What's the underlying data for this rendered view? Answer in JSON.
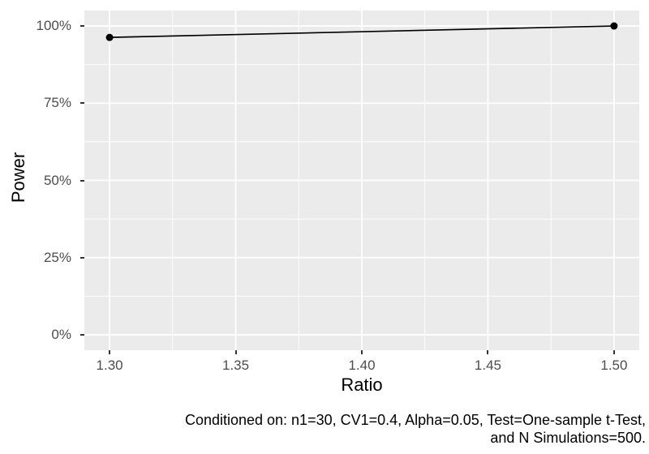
{
  "chart_data": {
    "type": "line",
    "title": "",
    "xlabel": "Ratio",
    "ylabel": "Power",
    "x": [
      1.3,
      1.5
    ],
    "series": [
      {
        "name": "Power",
        "values": [
          96.3,
          100
        ]
      }
    ],
    "xlim": [
      1.29,
      1.51
    ],
    "ylim": [
      -5,
      105
    ],
    "x_ticks": {
      "values": [
        1.3,
        1.35,
        1.4,
        1.45,
        1.5
      ],
      "labels": [
        "1.30",
        "1.35",
        "1.40",
        "1.45",
        "1.50"
      ]
    },
    "y_ticks": {
      "values": [
        0,
        25,
        50,
        75,
        100
      ],
      "labels": [
        "0%",
        "25%",
        "50%",
        "75%",
        "100%"
      ]
    },
    "grid": "major+minor",
    "legend": "none",
    "caption": [
      "Conditioned on: n1=30, CV1=0.4, Alpha=0.05, Test=One-sample t-Test,",
      "and N Simulations=500."
    ],
    "colors": {
      "panel_bg": "#EBEBEB",
      "grid": "#FFFFFF",
      "line": "#000000",
      "point": "#000000",
      "tick_mark": "#333333",
      "tick_label": "#4D4D4D",
      "axis_title": "#000000",
      "caption_text": "#000000"
    }
  }
}
